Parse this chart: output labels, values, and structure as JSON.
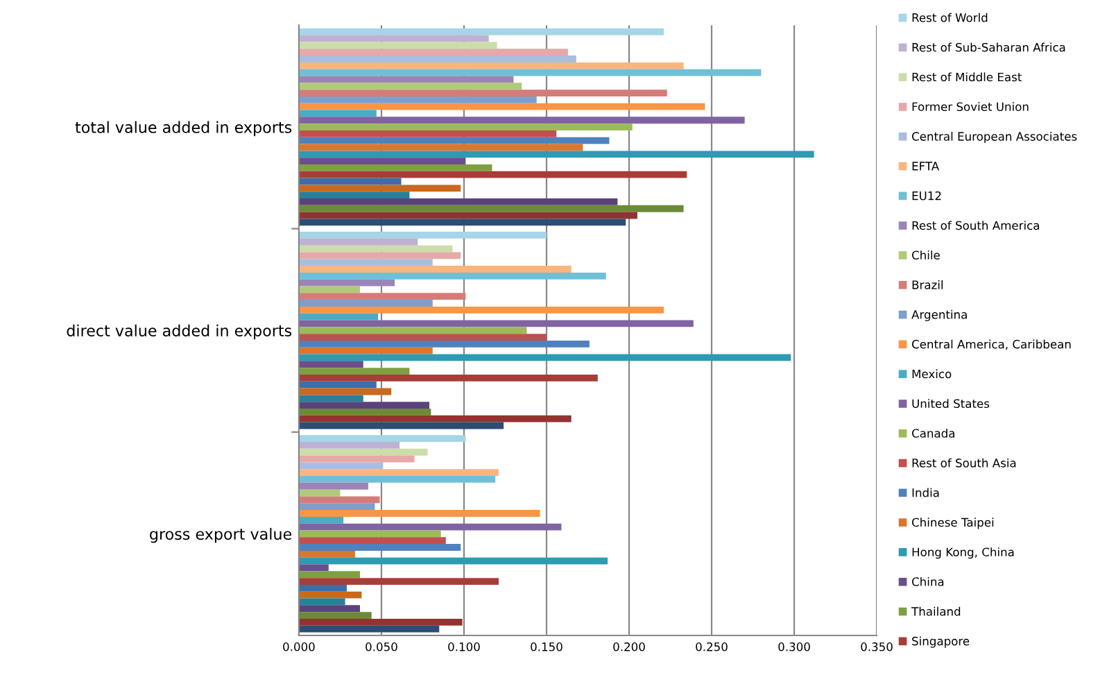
{
  "chart_data": {
    "type": "bar",
    "orientation": "horizontal",
    "categories": [
      "total value added in exports",
      "direct value added in exports",
      "gross export value"
    ],
    "xlim": [
      0,
      0.35
    ],
    "xticks": [
      {
        "value": 0,
        "label": "0.000"
      },
      {
        "value": 0.05,
        "label": "0.050"
      },
      {
        "value": 0.1,
        "label": "0.100"
      },
      {
        "value": 0.15,
        "label": "0.150"
      },
      {
        "value": 0.2,
        "label": "0.200"
      },
      {
        "value": 0.25,
        "label": "0.250"
      },
      {
        "value": 0.3,
        "label": "0.300"
      },
      {
        "value": 0.35,
        "label": "0.350"
      }
    ],
    "grid": "x",
    "legend": "right",
    "series": [
      {
        "name": "Rest of World",
        "color": "#a5d5e6",
        "values": [
          0.221,
          0.15,
          0.101
        ]
      },
      {
        "name": "Rest of Sub-Saharan Africa",
        "color": "#bfb1d3",
        "values": [
          0.115,
          0.072,
          0.061
        ]
      },
      {
        "name": "Rest of Middle East",
        "color": "#ccddaa",
        "values": [
          0.12,
          0.093,
          0.078
        ]
      },
      {
        "name": "Former Soviet Union",
        "color": "#e6a9a8",
        "values": [
          0.163,
          0.098,
          0.07
        ]
      },
      {
        "name": "Central European Associates",
        "color": "#a9bedc",
        "values": [
          0.168,
          0.081,
          0.051
        ]
      },
      {
        "name": "EFTA",
        "color": "#fab57f",
        "values": [
          0.233,
          0.165,
          0.121
        ]
      },
      {
        "name": "EU12",
        "color": "#6fc0d6",
        "values": [
          0.28,
          0.186,
          0.119
        ]
      },
      {
        "name": "Rest of South America",
        "color": "#9b84b8",
        "values": [
          0.13,
          0.058,
          0.042
        ]
      },
      {
        "name": "Chile",
        "color": "#afcb7a",
        "values": [
          0.135,
          0.037,
          0.025
        ]
      },
      {
        "name": "Brazil",
        "color": "#d57c7a",
        "values": [
          0.223,
          0.101,
          0.049
        ]
      },
      {
        "name": "Argentina",
        "color": "#7d9fcf",
        "values": [
          0.144,
          0.081,
          0.046
        ]
      },
      {
        "name": "Central America, Caribbean",
        "color": "#f79646",
        "values": [
          0.246,
          0.221,
          0.146
        ]
      },
      {
        "name": "Mexico",
        "color": "#4bacc6",
        "values": [
          0.047,
          0.048,
          0.027
        ]
      },
      {
        "name": "United States",
        "color": "#8064a2",
        "values": [
          0.27,
          0.239,
          0.159
        ]
      },
      {
        "name": "Canada",
        "color": "#9bbb59",
        "values": [
          0.202,
          0.138,
          0.086
        ]
      },
      {
        "name": "Rest of South Asia",
        "color": "#c0504d",
        "values": [
          0.156,
          0.15,
          0.089
        ]
      },
      {
        "name": "India",
        "color": "#4f81bd",
        "values": [
          0.188,
          0.176,
          0.098
        ]
      },
      {
        "name": "Chinese Taipei",
        "color": "#d9772e",
        "values": [
          0.172,
          0.081,
          0.034
        ]
      },
      {
        "name": "Hong Kong, China",
        "color": "#2e9ab3",
        "values": [
          0.312,
          0.298,
          0.187
        ]
      },
      {
        "name": "China",
        "color": "#6a4f8c",
        "values": [
          0.101,
          0.039,
          0.018
        ]
      },
      {
        "name": "Thailand",
        "color": "#7ea040",
        "values": [
          0.117,
          0.067,
          0.037
        ]
      },
      {
        "name": "Singapore",
        "color": "#a83c39",
        "values": [
          0.235,
          0.181,
          0.121
        ]
      },
      {
        "color": "#3e6da8",
        "values": [
          0.062,
          0.047,
          0.029
        ]
      },
      {
        "color": "#c8691e",
        "values": [
          0.098,
          0.056,
          0.038
        ]
      },
      {
        "color": "#2a8098",
        "values": [
          0.067,
          0.039,
          0.028
        ]
      },
      {
        "color": "#5a437a",
        "values": [
          0.193,
          0.079,
          0.037
        ]
      },
      {
        "color": "#6c8a37",
        "values": [
          0.233,
          0.08,
          0.044
        ]
      },
      {
        "color": "#923331",
        "values": [
          0.205,
          0.165,
          0.099
        ]
      },
      {
        "color": "#2c4d75",
        "values": [
          0.198,
          0.124,
          0.085
        ]
      }
    ]
  }
}
